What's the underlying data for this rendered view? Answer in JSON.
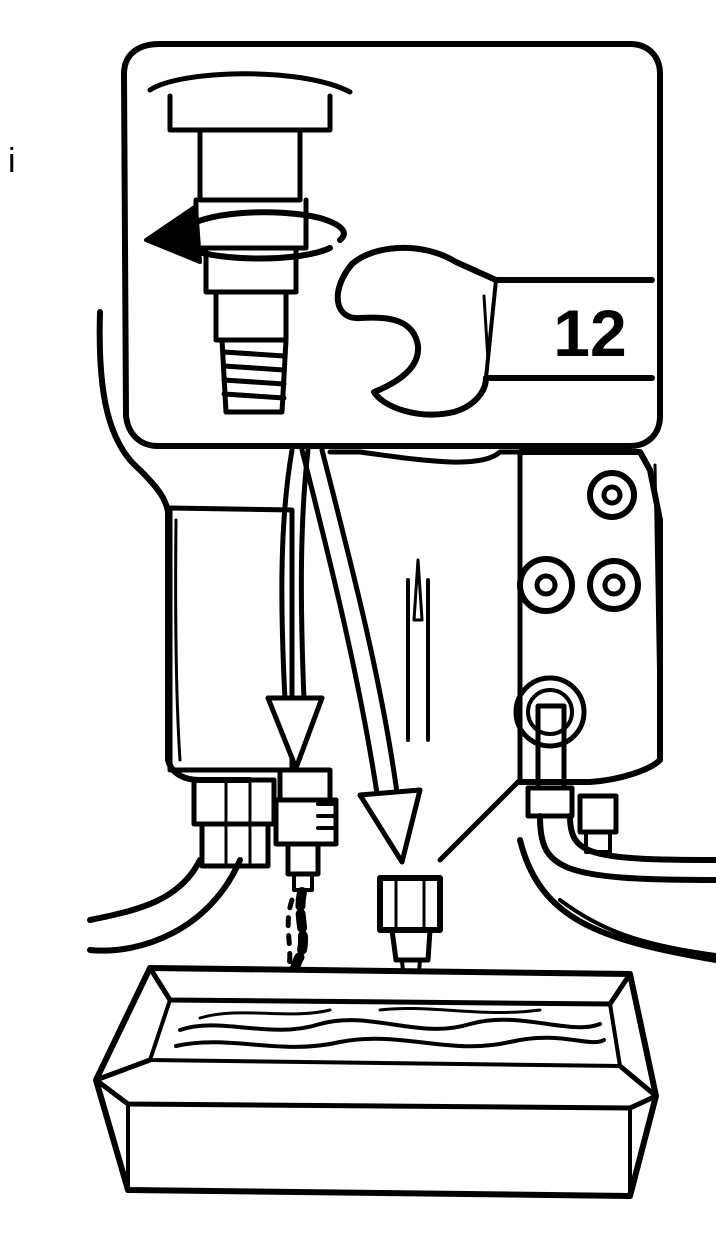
{
  "figure": {
    "wrench_size_label": "12",
    "margin_mark": "i"
  },
  "colors": {
    "ink": "#000000",
    "paper": "#ffffff"
  }
}
